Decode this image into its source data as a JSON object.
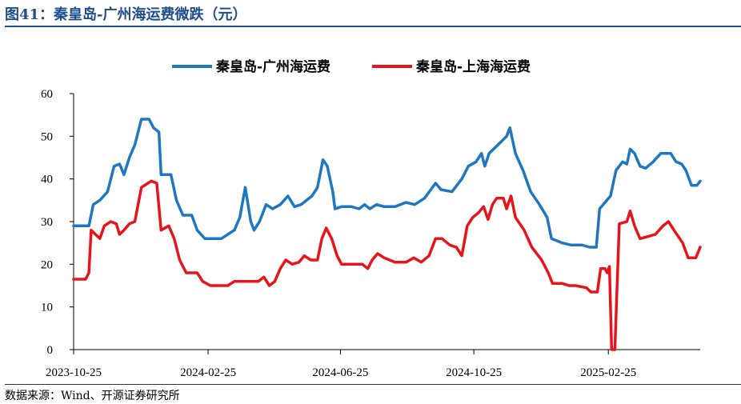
{
  "figure": {
    "title": "图41：秦皇岛-广州海运费微跌（元）",
    "source": "数据来源：Wind、开源证券研究所"
  },
  "chart_data": {
    "type": "line",
    "y_range": [
      0,
      60
    ],
    "y_ticks": [
      "0",
      "10",
      "20",
      "30",
      "40",
      "50",
      "60"
    ],
    "x_ticks": [
      "2023-10-25",
      "2024-02-25",
      "2024-06-25",
      "2024-10-25",
      "2025-02-25"
    ],
    "x_range": [
      "2023-10-25",
      "2025-05-20"
    ],
    "grid": false,
    "legend_position": "top",
    "series": [
      {
        "name": "秦皇岛-广州海运费",
        "color": "#1f77c0",
        "points": [
          [
            "2023-10-25",
            29
          ],
          [
            "2023-11-08",
            29
          ],
          [
            "2023-11-12",
            34
          ],
          [
            "2023-11-18",
            35
          ],
          [
            "2023-11-25",
            37
          ],
          [
            "2023-12-01",
            43
          ],
          [
            "2023-12-06",
            43.5
          ],
          [
            "2023-12-10",
            41
          ],
          [
            "2023-12-15",
            45
          ],
          [
            "2023-12-20",
            48
          ],
          [
            "2023-12-26",
            54
          ],
          [
            "2024-01-02",
            54
          ],
          [
            "2024-01-06",
            52
          ],
          [
            "2024-01-11",
            51
          ],
          [
            "2024-01-13",
            41
          ],
          [
            "2024-01-22",
            41
          ],
          [
            "2024-01-27",
            35
          ],
          [
            "2024-02-02",
            31.5
          ],
          [
            "2024-02-10",
            31.5
          ],
          [
            "2024-02-15",
            28
          ],
          [
            "2024-02-22",
            26
          ],
          [
            "2024-03-08",
            26
          ],
          [
            "2024-03-14",
            27
          ],
          [
            "2024-03-20",
            28
          ],
          [
            "2024-03-25",
            31
          ],
          [
            "2024-03-30",
            38
          ],
          [
            "2024-04-04",
            30
          ],
          [
            "2024-04-07",
            28
          ],
          [
            "2024-04-12",
            30
          ],
          [
            "2024-04-18",
            34
          ],
          [
            "2024-04-24",
            33
          ],
          [
            "2024-05-01",
            34
          ],
          [
            "2024-05-08",
            36
          ],
          [
            "2024-05-14",
            33.5
          ],
          [
            "2024-05-20",
            34
          ],
          [
            "2024-05-25",
            35
          ],
          [
            "2024-05-30",
            36
          ],
          [
            "2024-06-04",
            38
          ],
          [
            "2024-06-09",
            44.5
          ],
          [
            "2024-06-13",
            43
          ],
          [
            "2024-06-18",
            37
          ],
          [
            "2024-06-20",
            33
          ],
          [
            "2024-06-26",
            33.5
          ],
          [
            "2024-07-05",
            33.5
          ],
          [
            "2024-07-12",
            33
          ],
          [
            "2024-07-17",
            34
          ],
          [
            "2024-07-22",
            33
          ],
          [
            "2024-07-28",
            34
          ],
          [
            "2024-08-04",
            33.5
          ],
          [
            "2024-08-14",
            33.5
          ],
          [
            "2024-08-24",
            34.5
          ],
          [
            "2024-09-01",
            34
          ],
          [
            "2024-09-10",
            35.5
          ],
          [
            "2024-09-20",
            39
          ],
          [
            "2024-09-25",
            37.5
          ],
          [
            "2024-10-05",
            37
          ],
          [
            "2024-10-14",
            40
          ],
          [
            "2024-10-20",
            43
          ],
          [
            "2024-10-27",
            44
          ],
          [
            "2024-11-01",
            46
          ],
          [
            "2024-11-04",
            43
          ],
          [
            "2024-11-08",
            46
          ],
          [
            "2024-11-14",
            47.5
          ],
          [
            "2024-11-20",
            49
          ],
          [
            "2024-11-24",
            50
          ],
          [
            "2024-11-27",
            52
          ],
          [
            "2024-12-02",
            46
          ],
          [
            "2024-12-09",
            42
          ],
          [
            "2024-12-16",
            37
          ],
          [
            "2024-12-24",
            34
          ],
          [
            "2024-12-31",
            31
          ],
          [
            "2025-01-04",
            26
          ],
          [
            "2025-01-14",
            25
          ],
          [
            "2025-01-22",
            24.5
          ],
          [
            "2025-02-01",
            24.5
          ],
          [
            "2025-02-08",
            24
          ],
          [
            "2025-02-14",
            24
          ],
          [
            "2025-02-17",
            33
          ],
          [
            "2025-02-22",
            34.5
          ],
          [
            "2025-02-27",
            36
          ],
          [
            "2025-03-04",
            42
          ],
          [
            "2025-03-10",
            44
          ],
          [
            "2025-03-14",
            43.5
          ],
          [
            "2025-03-17",
            47
          ],
          [
            "2025-03-21",
            46
          ],
          [
            "2025-03-26",
            43
          ],
          [
            "2025-03-31",
            42.5
          ],
          [
            "2025-04-07",
            44
          ],
          [
            "2025-04-14",
            46
          ],
          [
            "2025-04-23",
            46
          ],
          [
            "2025-04-28",
            44
          ],
          [
            "2025-05-03",
            43.5
          ],
          [
            "2025-05-07",
            42
          ],
          [
            "2025-05-12",
            38.5
          ],
          [
            "2025-05-17",
            38.5
          ],
          [
            "2025-05-20",
            39.5
          ]
        ]
      },
      {
        "name": "秦皇岛-上海海运费",
        "color": "#e8141b",
        "points": [
          [
            "2023-10-25",
            16.5
          ],
          [
            "2023-11-05",
            16.5
          ],
          [
            "2023-11-08",
            18
          ],
          [
            "2023-11-10",
            28
          ],
          [
            "2023-11-14",
            27
          ],
          [
            "2023-11-18",
            26
          ],
          [
            "2023-11-22",
            29
          ],
          [
            "2023-11-28",
            30
          ],
          [
            "2023-12-03",
            29.5
          ],
          [
            "2023-12-06",
            27
          ],
          [
            "2023-12-10",
            28
          ],
          [
            "2023-12-15",
            29.5
          ],
          [
            "2023-12-20",
            30
          ],
          [
            "2023-12-26",
            38
          ],
          [
            "2024-01-04",
            39.5
          ],
          [
            "2024-01-09",
            39
          ],
          [
            "2024-01-13",
            28
          ],
          [
            "2024-01-20",
            29
          ],
          [
            "2024-01-25",
            26
          ],
          [
            "2024-01-30",
            21
          ],
          [
            "2024-02-05",
            18
          ],
          [
            "2024-02-15",
            18
          ],
          [
            "2024-02-20",
            16
          ],
          [
            "2024-02-27",
            15
          ],
          [
            "2024-03-07",
            15
          ],
          [
            "2024-03-14",
            15
          ],
          [
            "2024-03-20",
            16
          ],
          [
            "2024-03-27",
            16
          ],
          [
            "2024-04-04",
            16
          ],
          [
            "2024-04-11",
            16
          ],
          [
            "2024-04-16",
            17
          ],
          [
            "2024-04-21",
            15
          ],
          [
            "2024-04-26",
            16
          ],
          [
            "2024-05-01",
            19
          ],
          [
            "2024-05-06",
            21
          ],
          [
            "2024-05-12",
            20
          ],
          [
            "2024-05-18",
            20.5
          ],
          [
            "2024-05-23",
            22
          ],
          [
            "2024-05-29",
            21
          ],
          [
            "2024-06-04",
            21
          ],
          [
            "2024-06-08",
            26
          ],
          [
            "2024-06-12",
            28.5
          ],
          [
            "2024-06-17",
            26
          ],
          [
            "2024-06-22",
            22
          ],
          [
            "2024-06-26",
            20
          ],
          [
            "2024-07-05",
            20
          ],
          [
            "2024-07-15",
            20
          ],
          [
            "2024-07-20",
            19
          ],
          [
            "2024-07-24",
            21
          ],
          [
            "2024-07-29",
            22.5
          ],
          [
            "2024-08-04",
            21.5
          ],
          [
            "2024-08-09",
            21
          ],
          [
            "2024-08-14",
            20.5
          ],
          [
            "2024-08-24",
            20.5
          ],
          [
            "2024-08-31",
            21.5
          ],
          [
            "2024-09-07",
            20.5
          ],
          [
            "2024-09-14",
            22
          ],
          [
            "2024-09-20",
            26
          ],
          [
            "2024-09-26",
            26
          ],
          [
            "2024-10-03",
            24.5
          ],
          [
            "2024-10-09",
            24
          ],
          [
            "2024-10-14",
            22
          ],
          [
            "2024-10-19",
            29
          ],
          [
            "2024-10-24",
            31
          ],
          [
            "2024-10-29",
            32
          ],
          [
            "2024-11-03",
            33.5
          ],
          [
            "2024-11-07",
            30.5
          ],
          [
            "2024-11-11",
            34
          ],
          [
            "2024-11-15",
            35.5
          ],
          [
            "2024-11-21",
            35.5
          ],
          [
            "2024-11-24",
            33
          ],
          [
            "2024-11-28",
            36
          ],
          [
            "2024-12-02",
            31
          ],
          [
            "2024-12-10",
            28
          ],
          [
            "2024-12-17",
            24
          ],
          [
            "2024-12-26",
            21
          ],
          [
            "2025-01-01",
            18
          ],
          [
            "2025-01-05",
            15.5
          ],
          [
            "2025-01-14",
            15.5
          ],
          [
            "2025-01-20",
            15
          ],
          [
            "2025-01-26",
            15
          ],
          [
            "2025-02-05",
            14.5
          ],
          [
            "2025-02-09",
            13.5
          ],
          [
            "2025-02-15",
            13.5
          ],
          [
            "2025-02-18",
            19
          ],
          [
            "2025-02-22",
            19
          ],
          [
            "2025-02-24",
            18
          ],
          [
            "2025-02-26",
            19.5
          ],
          [
            "2025-02-28",
            0
          ],
          [
            "2025-03-03",
            0
          ],
          [
            "2025-03-07",
            29.5
          ],
          [
            "2025-03-14",
            30
          ],
          [
            "2025-03-17",
            32.5
          ],
          [
            "2025-03-21",
            29
          ],
          [
            "2025-03-26",
            26
          ],
          [
            "2025-04-02",
            26.5
          ],
          [
            "2025-04-09",
            27
          ],
          [
            "2025-04-16",
            29
          ],
          [
            "2025-04-21",
            30
          ],
          [
            "2025-04-26",
            28
          ],
          [
            "2025-05-04",
            25
          ],
          [
            "2025-05-09",
            21.5
          ],
          [
            "2025-05-16",
            21.5
          ],
          [
            "2025-05-20",
            24
          ]
        ]
      }
    ]
  }
}
